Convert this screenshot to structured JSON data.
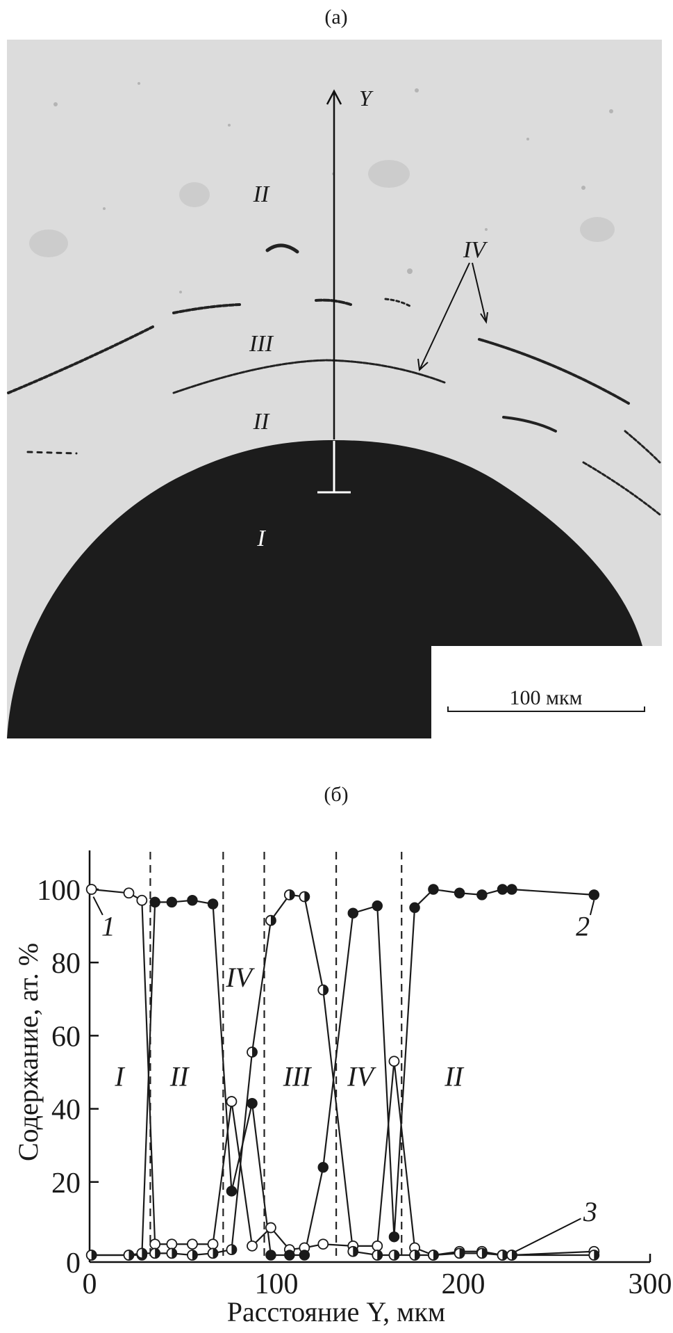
{
  "panel_a": {
    "label": "(a)",
    "axis_label": "Y",
    "scale_bar": "100 мкм",
    "region_labels": [
      "II",
      "III",
      "II",
      "I",
      "IV"
    ]
  },
  "panel_b": {
    "label": "(б)"
  },
  "chart_data": {
    "type": "line",
    "xlabel": "Расстояние Y, мкм",
    "ylabel": "Содержание, ат. %",
    "xlim": [
      0,
      300
    ],
    "ylim": [
      0,
      110
    ],
    "xticks": [
      "0",
      "100",
      "200",
      "300"
    ],
    "yticks": [
      "0",
      "20",
      "40",
      "60",
      "80",
      "100"
    ],
    "grid": false,
    "x": [
      1,
      21,
      28,
      35,
      44,
      55,
      66,
      76,
      87,
      97,
      107,
      115,
      125,
      141,
      154,
      163,
      174,
      184,
      198,
      210,
      221,
      226,
      270
    ],
    "series": [
      {
        "name": "1",
        "marker": "open-circle",
        "values": [
          100,
          99,
          97,
          3,
          3,
          3,
          3,
          42,
          2.5,
          7.5,
          1.5,
          2,
          3,
          2.5,
          2.5,
          53,
          2,
          0,
          1,
          1,
          0,
          0,
          1
        ]
      },
      {
        "name": "2",
        "marker": "filled-circle",
        "values": [
          0,
          0,
          0,
          96.5,
          96.5,
          97,
          96,
          17.5,
          41.5,
          0,
          0,
          0,
          24,
          93.5,
          95.5,
          5,
          95,
          100,
          99,
          98.5,
          100,
          100,
          98.5
        ]
      },
      {
        "name": "3",
        "marker": "half-filled-circle",
        "values": [
          0,
          0,
          0.5,
          0.5,
          0.5,
          0,
          0.5,
          1.5,
          55.5,
          91.5,
          98.5,
          98,
          72.5,
          1,
          0,
          0,
          0,
          0,
          0.5,
          0.5,
          0,
          0,
          0
        ]
      }
    ],
    "boundaries": [
      32.5,
      71.5,
      93.5,
      132,
      167
    ],
    "region_labels": [
      {
        "text": "I",
        "x": 16,
        "y": 49
      },
      {
        "text": "II",
        "x": 48,
        "y": 49
      },
      {
        "text": "IV",
        "x": 80,
        "y": 76
      },
      {
        "text": "III",
        "x": 111,
        "y": 49
      },
      {
        "text": "IV",
        "x": 145,
        "y": 49
      },
      {
        "text": "II",
        "x": 195,
        "y": 49
      }
    ],
    "series_labels": [
      {
        "text": "1",
        "x": 10,
        "y": 90
      },
      {
        "text": "2",
        "x": 264,
        "y": 90
      },
      {
        "text": "3",
        "x": 268,
        "y": 12
      }
    ]
  }
}
